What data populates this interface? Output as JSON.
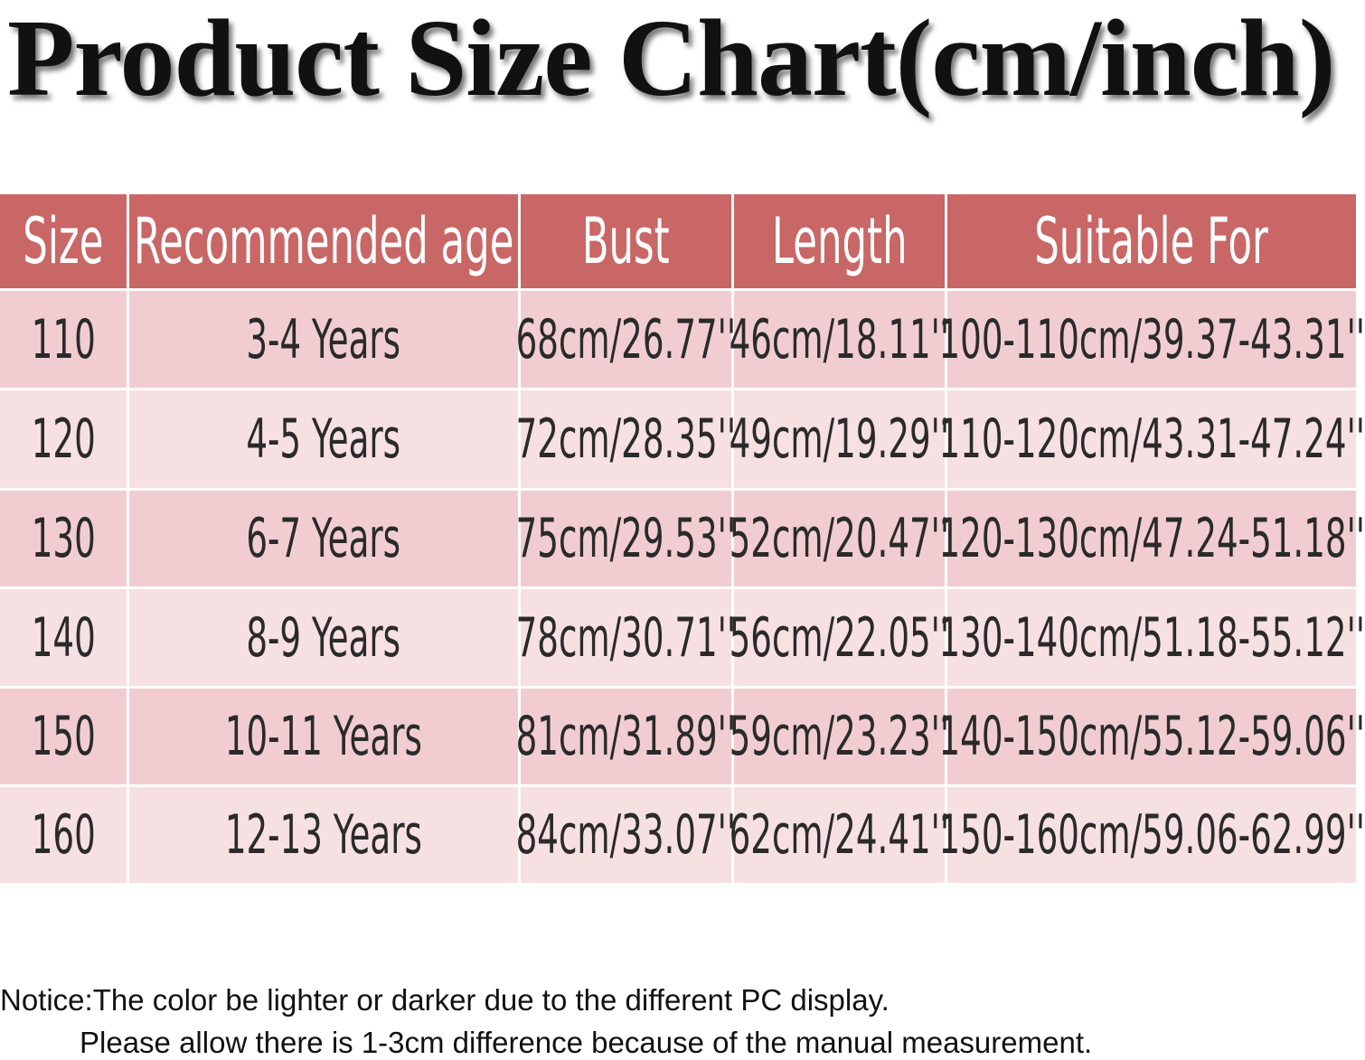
{
  "title": "Product Size Chart(cm/inch)",
  "table": {
    "headers": [
      "Size",
      "Recommended age",
      "Bust",
      "Length",
      "Suitable For"
    ],
    "rows": [
      [
        "110",
        "3-4 Years",
        "68cm/26.77''",
        "46cm/18.11''",
        "100-110cm/39.37-43.31''"
      ],
      [
        "120",
        "4-5 Years",
        "72cm/28.35''",
        "49cm/19.29''",
        "110-120cm/43.31-47.24''"
      ],
      [
        "130",
        "6-7 Years",
        "75cm/29.53''",
        "52cm/20.47''",
        "120-130cm/47.24-51.18''"
      ],
      [
        "140",
        "8-9 Years",
        "78cm/30.71''",
        "56cm/22.05''",
        "130-140cm/51.18-55.12''"
      ],
      [
        "150",
        "10-11 Years",
        "81cm/31.89''",
        "59cm/23.23''",
        "140-150cm/55.12-59.06''"
      ],
      [
        "160",
        "12-13 Years",
        "84cm/33.07''",
        "62cm/24.41''",
        "150-160cm/59.06-62.99''"
      ]
    ]
  },
  "notice": [
    "Notice:The color be lighter or darker due to the different PC display.",
    "Please allow there is 1-3cm difference because of the manual measurement."
  ]
}
